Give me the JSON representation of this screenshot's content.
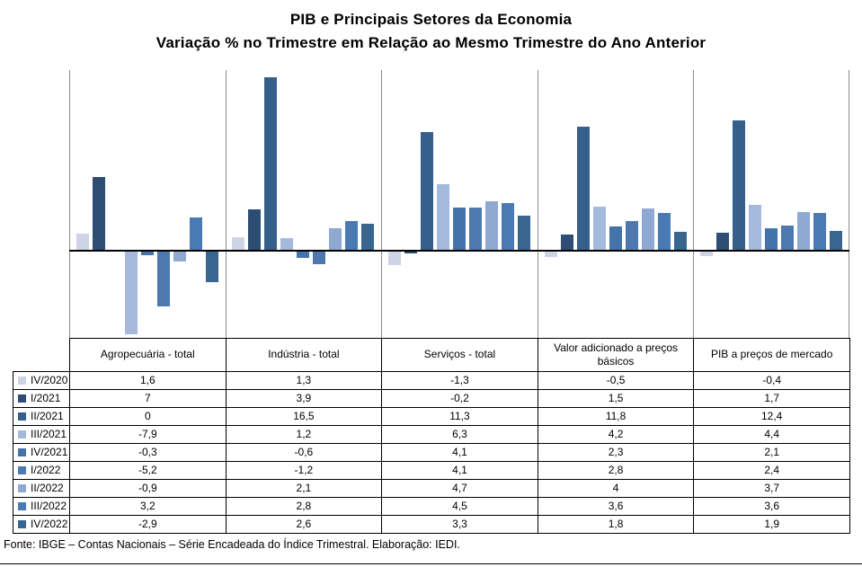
{
  "title": {
    "line1": "PIB e Principais  Setores da Economia",
    "line2": "Variação  % no Trimestre em Relação ao Mesmo Trimestre do Ano Anterior"
  },
  "footer": "Fonte: IBGE – Contas Nacionais – Série Encadeada do Índice Trimestral. Elaboração: IEDI.",
  "chart_data": {
    "type": "bar",
    "title": "PIB e Principais Setores da Economia — Variação % no Trimestre em Relação ao Mesmo Trimestre do Ano Anterior",
    "categories": [
      "Agropecuária - total",
      "Indústria - total",
      "Serviços - total",
      "Valor adicionado a preços básicos",
      "PIB a preços de mercado"
    ],
    "series": [
      {
        "name": "IV/2020",
        "color": "#ccd4e6",
        "values": [
          1.6,
          1.3,
          -1.3,
          -0.5,
          -0.4
        ],
        "labels": [
          "1,6",
          "1,3",
          "-1,3",
          "-0,5",
          "-0,4"
        ]
      },
      {
        "name": "I/2021",
        "color": "#2d4d74",
        "values": [
          7,
          3.9,
          -0.2,
          1.5,
          1.7
        ],
        "labels": [
          "7",
          "3,9",
          "-0,2",
          "1,5",
          "1,7"
        ]
      },
      {
        "name": "II/2021",
        "color": "#35608c",
        "values": [
          0,
          16.5,
          11.3,
          11.8,
          12.4
        ],
        "labels": [
          "0",
          "16,5",
          "11,3",
          "11,8",
          "12,4"
        ]
      },
      {
        "name": "III/2021",
        "color": "#a4b9db",
        "values": [
          -7.9,
          1.2,
          6.3,
          4.2,
          4.4
        ],
        "labels": [
          "-7,9",
          "1,2",
          "6,3",
          "4,2",
          "4,4"
        ]
      },
      {
        "name": "IV/2021",
        "color": "#4473a9",
        "values": [
          -0.3,
          -0.6,
          4.1,
          2.3,
          2.1
        ],
        "labels": [
          "-0,3",
          "-0,6",
          "4,1",
          "2,3",
          "2,1"
        ]
      },
      {
        "name": "I/2022",
        "color": "#4d79ae",
        "values": [
          -5.2,
          -1.2,
          4.1,
          2.8,
          2.4
        ],
        "labels": [
          "-5,2",
          "-1,2",
          "4,1",
          "2,8",
          "2,4"
        ]
      },
      {
        "name": "II/2022",
        "color": "#8fa9d2",
        "values": [
          -0.9,
          2.1,
          4.7,
          4,
          3.7
        ],
        "labels": [
          "-0,9",
          "2,1",
          "4,7",
          "4",
          "3,7"
        ]
      },
      {
        "name": "III/2022",
        "color": "#4a7ab4",
        "values": [
          3.2,
          2.8,
          4.5,
          3.6,
          3.6
        ],
        "labels": [
          "3,2",
          "2,8",
          "4,5",
          "3,6",
          "3,6"
        ]
      },
      {
        "name": "IV/2022",
        "color": "#38668f",
        "values": [
          -2.9,
          2.6,
          3.3,
          1.8,
          1.9
        ],
        "labels": [
          "-2,9",
          "2,6",
          "3,3",
          "1,8",
          "1,9"
        ]
      }
    ],
    "ylim": [
      -8.3,
      17.2
    ],
    "xlabel": "",
    "ylabel": "",
    "grid": "vertical panel dividers only, no horizontal gridlines, no y-axis tick labels",
    "legend_position": "left column of data table below chart",
    "zero_line": true,
    "accent_colors": {
      "panel_divider": "#8c8c8c",
      "axis_line": "#000000",
      "table_border": "#000000"
    }
  }
}
